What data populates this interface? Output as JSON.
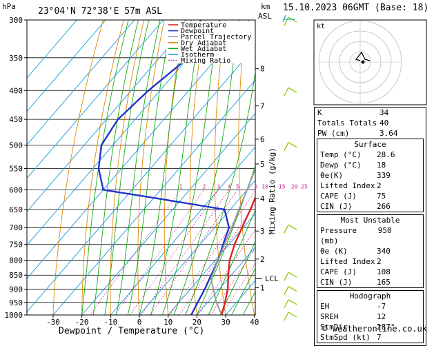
{
  "header": {
    "hpa_label": "hPa",
    "location": "23°04'N  72°38'E  57m  ASL",
    "km_label": "km",
    "asl_label": "ASL",
    "date": "15.10.2023  06GMT  (Base: 18)"
  },
  "legend": [
    {
      "label": "Temperature",
      "color": "#dd2222",
      "style": "solid"
    },
    {
      "label": "Dewpoint",
      "color": "#2233cc",
      "style": "solid"
    },
    {
      "label": "Parcel Trajectory",
      "color": "#999999",
      "style": "solid"
    },
    {
      "label": "Dry Adiabat",
      "color": "#dd8800",
      "style": "solid"
    },
    {
      "label": "Wet Adiabat",
      "color": "#11aa11",
      "style": "solid"
    },
    {
      "label": "Isotherm",
      "color": "#1199dd",
      "style": "solid"
    },
    {
      "label": "Mixing Ratio",
      "color": "#cc2299",
      "style": "dotted"
    }
  ],
  "chart_data": {
    "type": "line",
    "xlabel": "Dewpoint / Temperature (°C)",
    "ylabel_right": "Mixing Ratio (g/kg)",
    "pressure_ticks": [
      300,
      350,
      400,
      450,
      500,
      550,
      600,
      650,
      700,
      750,
      800,
      850,
      900,
      950,
      1000
    ],
    "temp_ticks": [
      -30,
      -20,
      -10,
      0,
      10,
      20,
      30,
      40
    ],
    "km_ticks": [
      {
        "label": "8",
        "p": 366
      },
      {
        "label": "7",
        "p": 426
      },
      {
        "label": "6",
        "p": 488
      },
      {
        "label": "5",
        "p": 540
      },
      {
        "label": "4",
        "p": 622
      },
      {
        "label": "3",
        "p": 710
      },
      {
        "label": "2",
        "p": 796
      },
      {
        "label": "1",
        "p": 895
      }
    ],
    "lcl": {
      "label": "LCL",
      "p": 862
    },
    "mixing_ratio_labels": [
      "1",
      "2",
      "3",
      "4",
      "5",
      "8",
      "10",
      "15",
      "20",
      "25"
    ],
    "mixing_ratio_values": [
      1,
      2,
      3,
      4,
      5,
      8,
      10,
      15,
      20,
      25
    ],
    "series": [
      {
        "name": "Temperature",
        "color": "#dd2222",
        "p": [
          1000,
          950,
          900,
          850,
          800,
          750,
          700,
          650,
          600,
          550,
          500,
          450,
          400,
          350,
          300
        ],
        "t": [
          28.6,
          26,
          23,
          19,
          15,
          12,
          9.5,
          7,
          4,
          0,
          -5,
          -11,
          -19,
          -28,
          -38
        ]
      },
      {
        "name": "Dewpoint",
        "color": "#2233cc",
        "p": [
          1000,
          950,
          900,
          850,
          800,
          750,
          700,
          650,
          620,
          600,
          550,
          500,
          450,
          400,
          350,
          300
        ],
        "t": [
          18,
          16.5,
          15,
          13,
          11,
          8,
          5,
          -2,
          -30,
          -50,
          -58,
          -64,
          -66,
          -64,
          -60,
          -67
        ]
      },
      {
        "name": "Parcel Trajectory",
        "color": "#999999",
        "p": [
          1000,
          950,
          900,
          862,
          800,
          750,
          700,
          650,
          600,
          550,
          500,
          450,
          400,
          350,
          300
        ],
        "t": [
          28.6,
          23,
          18,
          14,
          11,
          8.5,
          6,
          3,
          0,
          -3.5,
          -8,
          -13,
          -19.5,
          -27,
          -36
        ]
      }
    ],
    "wind_barbs_p": [
      300,
      400,
      500,
      700,
      850,
      900,
      950,
      1000
    ]
  },
  "hodograph": {
    "label": "kt"
  },
  "indices": {
    "rows": [
      {
        "label": "K",
        "value": "34"
      },
      {
        "label": "Totals Totals",
        "value": "40"
      },
      {
        "label": "PW (cm)",
        "value": "3.64"
      }
    ],
    "surface": {
      "title": "Surface",
      "rows": [
        {
          "label": "Temp (°C)",
          "value": "28.6"
        },
        {
          "label": "Dewp (°C)",
          "value": "18"
        },
        {
          "label": "θe(K)",
          "value": "339"
        },
        {
          "label": "Lifted Index",
          "value": "2"
        },
        {
          "label": "CAPE (J)",
          "value": "75"
        },
        {
          "label": "CIN (J)",
          "value": "266"
        }
      ]
    },
    "unstable": {
      "title": "Most Unstable",
      "rows": [
        {
          "label": "Pressure (mb)",
          "value": "950"
        },
        {
          "label": "θe (K)",
          "value": "340"
        },
        {
          "label": "Lifted Index",
          "value": "2"
        },
        {
          "label": "CAPE (J)",
          "value": "108"
        },
        {
          "label": "CIN (J)",
          "value": "165"
        }
      ]
    },
    "hodo": {
      "title": "Hodograph",
      "rows": [
        {
          "label": "EH",
          "value": "-7"
        },
        {
          "label": "SREH",
          "value": "12"
        },
        {
          "label": "StmDir",
          "value": "287°"
        },
        {
          "label": "StmSpd (kt)",
          "value": "7"
        }
      ]
    }
  },
  "footer": "© weatheronline.co.uk"
}
